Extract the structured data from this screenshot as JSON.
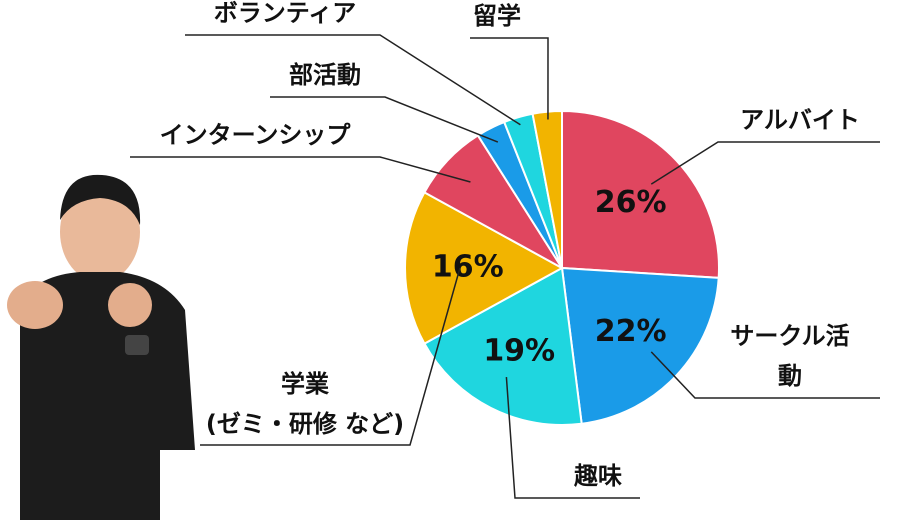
{
  "chart_data": {
    "type": "pie",
    "categories": [
      "アルバイト",
      "サークル活動",
      "趣味",
      "学業\n(ゼミ・研修 など)",
      "インターンシップ",
      "部活動",
      "ボランティア",
      "留学"
    ],
    "values": [
      26,
      22,
      19,
      16,
      8,
      3,
      3,
      3
    ],
    "value_labels": [
      "26%",
      "22%",
      "19%",
      "16%",
      null,
      null,
      null,
      null
    ],
    "colors": [
      "#e0465f",
      "#1a9be8",
      "#1fd6df",
      "#f2b400",
      "#e0465f",
      "#1a9be8",
      "#1fd6df",
      "#f2b400"
    ]
  }
}
